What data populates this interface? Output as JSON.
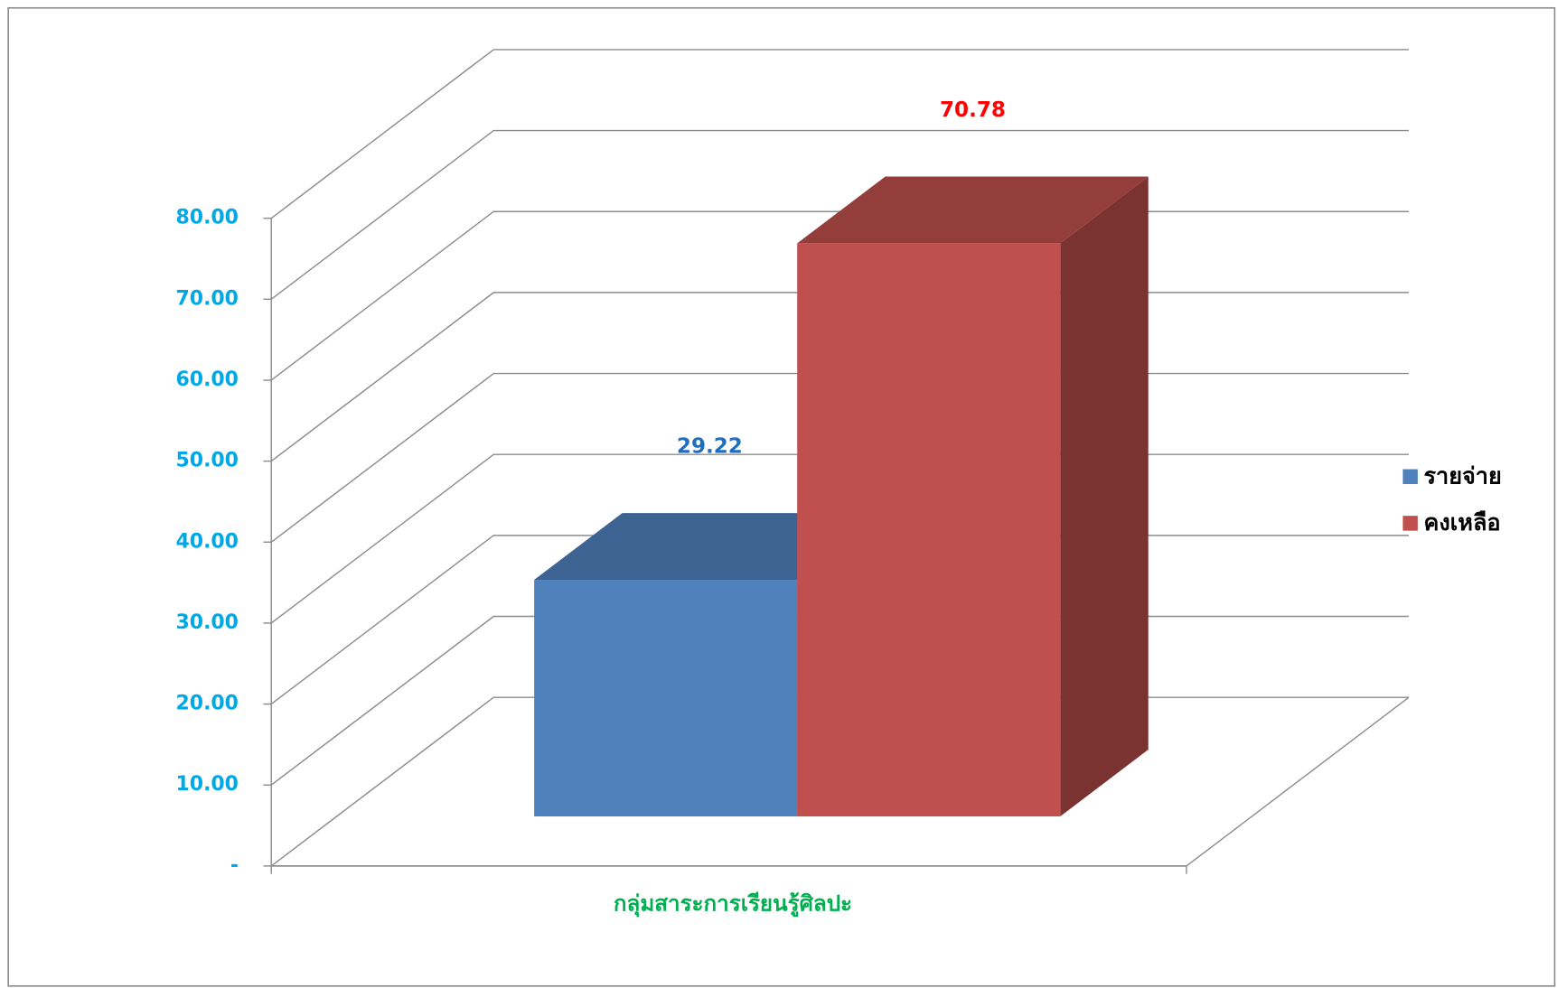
{
  "chart_data": {
    "type": "bar3d",
    "categories": [
      "กลุ่มสาระการเรียนรู้ศิลปะ"
    ],
    "series": [
      {
        "name": "รายจ่าย",
        "color": "#4F81BD",
        "label_color": "#1F6FBF",
        "values": [
          29.22
        ]
      },
      {
        "name": "คงเหลือ",
        "color": "#C0504D",
        "label_color": "#FF0000",
        "values": [
          70.78
        ]
      }
    ],
    "ylim": [
      0,
      80
    ],
    "yticks": [
      {
        "value": 0,
        "label": "-"
      },
      {
        "value": 10,
        "label": "10.00"
      },
      {
        "value": 20,
        "label": "20.00"
      },
      {
        "value": 30,
        "label": "30.00"
      },
      {
        "value": 40,
        "label": "40.00"
      },
      {
        "value": 50,
        "label": "50.00"
      },
      {
        "value": 60,
        "label": "60.00"
      },
      {
        "value": 70,
        "label": "70.00"
      },
      {
        "value": 80,
        "label": "80.00"
      }
    ],
    "grid": true,
    "legend": "right"
  }
}
